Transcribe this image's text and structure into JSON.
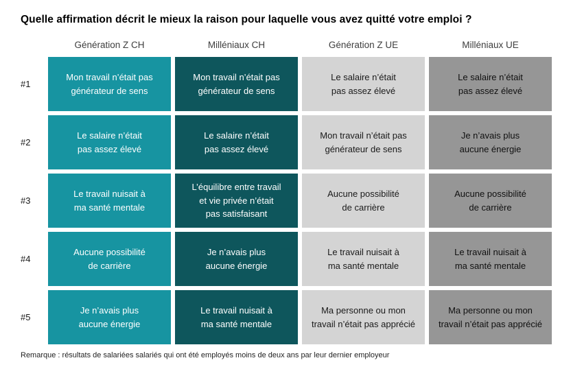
{
  "title": "Quelle affirmation décrit le mieux la raison pour laquelle vous avez quitté votre emploi ?",
  "footnote": "Remarque : résultats de salariées salariés qui ont été employés moins de deux ans par leur dernier employeur",
  "colors": {
    "column_fills": [
      "#1794A1",
      "#0E565C",
      "#D4D4D4",
      "#969696"
    ],
    "column_text": [
      "#FFFFFF",
      "#FFFFFF",
      "#1A1A1A",
      "#101010"
    ],
    "background": "#FFFFFF"
  },
  "chart_data": {
    "type": "table",
    "title": "Quelle affirmation décrit le mieux la raison pour laquelle vous avez quitté votre emploi ?",
    "legend_position": "none",
    "grid": "off",
    "columns": [
      "Génération Z CH",
      "Milléniaux CH",
      "Génération Z UE",
      "Milléniaux UE"
    ],
    "rows": [
      {
        "rank": "#1",
        "values": [
          "Mon travail n’était pas\ngénérateur de sens",
          "Mon travail n’était pas\ngénérateur de sens",
          "Le salaire n’était\npas assez élevé",
          "Le salaire n’était\npas assez élevé"
        ]
      },
      {
        "rank": "#2",
        "values": [
          "Le salaire n’était\npas assez élevé",
          "Le salaire n’était\npas assez élevé",
          "Mon travail n’était pas\ngénérateur de sens",
          "Je n’avais plus\naucune énergie"
        ]
      },
      {
        "rank": "#3",
        "values": [
          "Le travail nuisait à\nma santé mentale",
          "L’équilibre entre travail\net vie privée n’était\npas satisfaisant",
          "Aucune possibilité\nde carrière",
          "Aucune possibilité\nde carrière"
        ]
      },
      {
        "rank": "#4",
        "values": [
          "Aucune possibilité\nde carrière",
          "Je n’avais plus\naucune énergie",
          "Le travail nuisait à\nma santé mentale",
          "Le travail nuisait à\nma santé mentale"
        ]
      },
      {
        "rank": "#5",
        "values": [
          "Je n’avais plus\naucune énergie",
          "Le travail nuisait à\nma santé mentale",
          "Ma personne ou mon\ntravail n’était pas apprécié",
          "Ma personne ou mon\ntravail n’était pas apprécié"
        ]
      }
    ]
  }
}
